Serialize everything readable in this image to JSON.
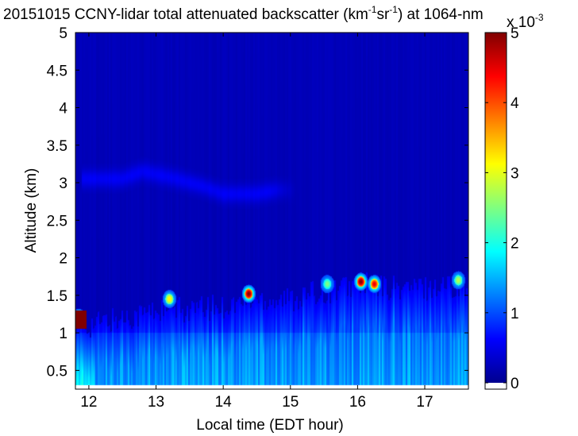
{
  "chart_data": {
    "type": "heatmap",
    "title": {
      "prefix": "20151015 CCNY-lidar total attenuated backscatter (km",
      "sup1": "-1",
      "mid": "sr",
      "sup2": "-1",
      "suffix": ") at 1064-nm"
    },
    "xlabel": "Local time (EDT hour)",
    "ylabel": "Altitude (km)",
    "xlim": [
      11.8,
      17.65
    ],
    "ylim": [
      0.25,
      5.0
    ],
    "x_ticks": [
      {
        "value": 12,
        "label": "12"
      },
      {
        "value": 13,
        "label": "13"
      },
      {
        "value": 14,
        "label": "14"
      },
      {
        "value": 15,
        "label": "15"
      },
      {
        "value": 16,
        "label": "16"
      },
      {
        "value": 17,
        "label": "17"
      }
    ],
    "y_ticks": [
      {
        "value": 0.5,
        "label": "0.5"
      },
      {
        "value": 1.0,
        "label": "1"
      },
      {
        "value": 1.5,
        "label": "1.5"
      },
      {
        "value": 2.0,
        "label": "2"
      },
      {
        "value": 2.5,
        "label": "2.5"
      },
      {
        "value": 3.0,
        "label": "3"
      },
      {
        "value": 3.5,
        "label": "3.5"
      },
      {
        "value": 4.0,
        "label": "4"
      },
      {
        "value": 4.5,
        "label": "4.5"
      },
      {
        "value": 5.0,
        "label": "5"
      }
    ],
    "colorbar": {
      "colormap": "jet",
      "range": [
        0,
        5
      ],
      "exponent_label": "x 10",
      "exponent_power": "-3",
      "ticks": [
        {
          "value": 0,
          "label": "0"
        },
        {
          "value": 1,
          "label": "1"
        },
        {
          "value": 2,
          "label": "2"
        },
        {
          "value": 3,
          "label": "3"
        },
        {
          "value": 4,
          "label": "4"
        },
        {
          "value": 5,
          "label": "5"
        }
      ]
    },
    "features": {
      "aerosol_layer": {
        "center_km": [
          [
            11.9,
            3.05
          ],
          [
            12.5,
            3.05
          ],
          [
            12.8,
            3.15
          ],
          [
            13.3,
            3.05
          ],
          [
            13.7,
            2.95
          ],
          [
            14.0,
            2.85
          ],
          [
            14.5,
            2.85
          ],
          [
            14.8,
            2.9
          ],
          [
            15.0,
            2.9
          ]
        ],
        "thickness_km": 0.25,
        "value": 0.55
      },
      "boundary_layer_top_km": [
        [
          11.85,
          1.05
        ],
        [
          12.0,
          1.1
        ],
        [
          12.5,
          1.2
        ],
        [
          13.0,
          1.3
        ],
        [
          13.5,
          1.3
        ],
        [
          14.0,
          1.35
        ],
        [
          14.5,
          1.45
        ],
        [
          15.0,
          1.45
        ],
        [
          15.5,
          1.55
        ],
        [
          16.0,
          1.65
        ],
        [
          16.5,
          1.6
        ],
        [
          17.0,
          1.6
        ],
        [
          17.5,
          1.65
        ]
      ],
      "cloud_patches": [
        {
          "x": 11.85,
          "y": 1.2,
          "value": 5.0
        },
        {
          "x": 13.2,
          "y": 1.45,
          "value": 3.2
        },
        {
          "x": 14.38,
          "y": 1.52,
          "value": 5.0
        },
        {
          "x": 15.55,
          "y": 1.65,
          "value": 2.5
        },
        {
          "x": 16.05,
          "y": 1.68,
          "value": 5.0
        },
        {
          "x": 16.25,
          "y": 1.65,
          "value": 4.5
        },
        {
          "x": 17.5,
          "y": 1.7,
          "value": 2.8
        }
      ],
      "background_value": 0.25
    }
  }
}
